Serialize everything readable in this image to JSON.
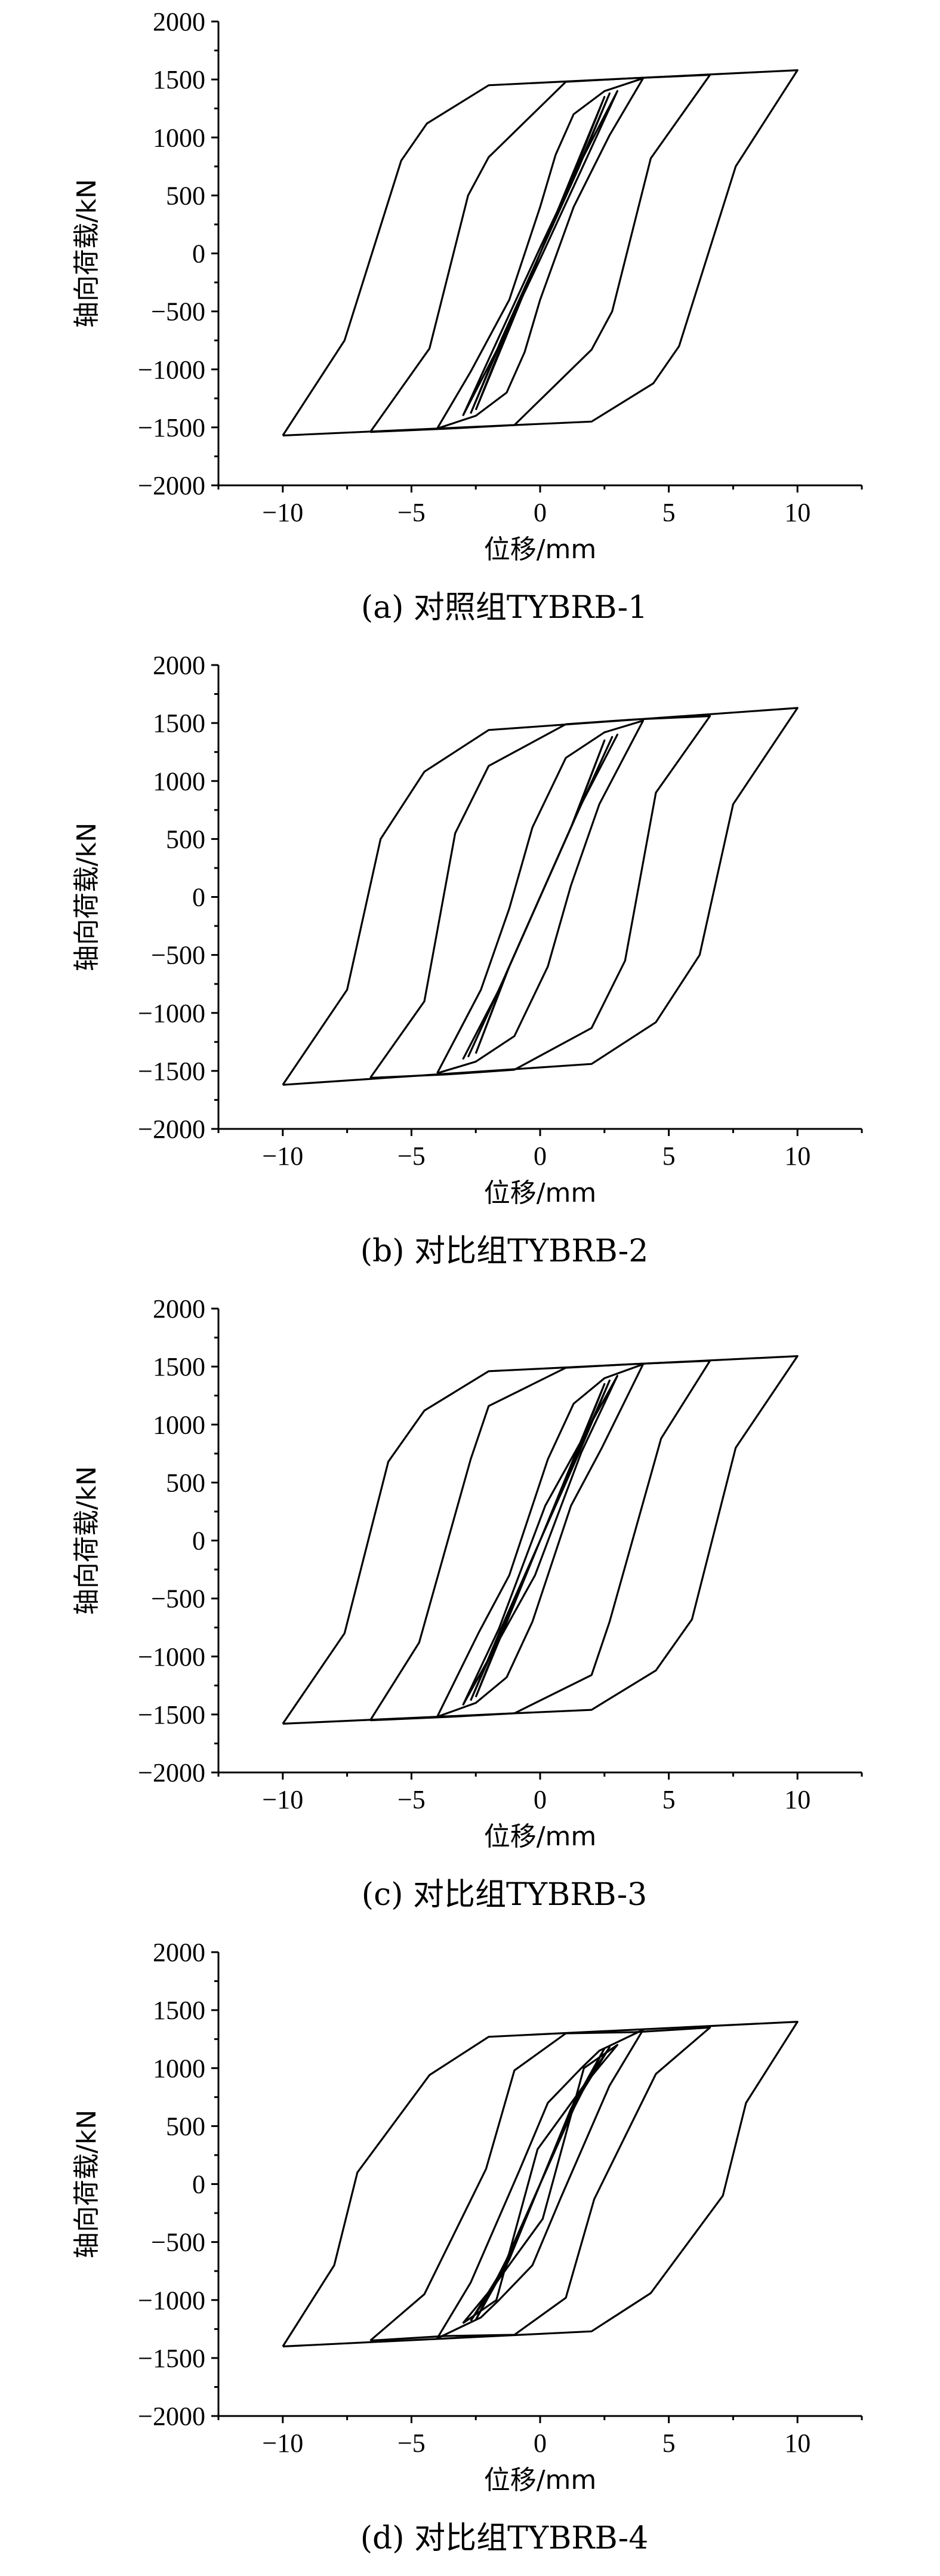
{
  "chart_data": [
    {
      "type": "line",
      "caption": "(a) 对照组TYBRB-1",
      "xlabel": "位移/mm",
      "ylabel": "轴向荷载/kN",
      "xlim": [
        -12.5,
        12.5
      ],
      "ylim": [
        -2000,
        2000
      ],
      "xticks": [
        -10,
        -5,
        0,
        5,
        10
      ],
      "yticks": [
        2000,
        1500,
        1000,
        500,
        0,
        -500,
        -1000,
        -1500,
        -2000
      ],
      "series": [
        {
          "x": [
            -2.5,
            -1.2,
            0,
            1.3,
            2.5,
            1.2,
            0,
            -1.3,
            -2.5
          ],
          "y": [
            -1350,
            -650,
            0,
            680,
            1350,
            650,
            0,
            -680,
            -1350
          ]
        },
        {
          "x": [
            -2.7,
            -1.4,
            0,
            1.5,
            2.7,
            1.4,
            0,
            -1.5,
            -2.7
          ],
          "y": [
            -1380,
            -700,
            0,
            740,
            1380,
            700,
            0,
            -740,
            -1380
          ]
        },
        {
          "x": [
            -3,
            -1.6,
            0,
            1.6,
            3,
            1.6,
            0,
            -1.6,
            -3
          ],
          "y": [
            -1400,
            -720,
            50,
            800,
            1400,
            720,
            -50,
            -800,
            -1400
          ]
        },
        {
          "x": [
            -4,
            -2.7,
            -1.2,
            0,
            0.6,
            1.3,
            2.5,
            4,
            2.7,
            1.3,
            0,
            -0.6,
            -1.3,
            -2.5,
            -4
          ],
          "y": [
            -1510,
            -1020,
            -400,
            400,
            850,
            1200,
            1400,
            1510,
            1020,
            400,
            -400,
            -850,
            -1200,
            -1400,
            -1510
          ]
        },
        {
          "x": [
            -6.6,
            -4.3,
            -2.8,
            -2,
            1,
            3.5,
            6.6,
            4.3,
            2.8,
            2,
            -1,
            -3.5,
            -6.6
          ],
          "y": [
            -1540,
            -820,
            500,
            830,
            1480,
            1510,
            1540,
            820,
            -500,
            -830,
            -1480,
            -1510,
            -1540
          ]
        },
        {
          "x": [
            -10,
            -7.6,
            -5.4,
            -4.4,
            -2,
            10,
            7.6,
            5.4,
            4.4,
            2,
            -10
          ],
          "y": [
            -1570,
            -750,
            800,
            1120,
            1450,
            1580,
            750,
            -800,
            -1120,
            -1450,
            -1570
          ]
        }
      ]
    },
    {
      "type": "line",
      "caption": "(b) 对比组TYBRB-2",
      "xlabel": "位移/mm",
      "ylabel": "轴向荷载/kN",
      "xlim": [
        -12.5,
        12.5
      ],
      "ylim": [
        -2000,
        2000
      ],
      "xticks": [
        -10,
        -5,
        0,
        5,
        10
      ],
      "yticks": [
        2000,
        1500,
        1000,
        500,
        0,
        -500,
        -1000,
        -1500,
        -2000
      ],
      "series": [
        {
          "x": [
            -2.5,
            -1.2,
            0,
            1.3,
            2.5,
            1.2,
            0,
            -1.3,
            -2.5
          ],
          "y": [
            -1350,
            -600,
            0,
            650,
            1350,
            600,
            0,
            -650,
            -1350
          ]
        },
        {
          "x": [
            -2.8,
            -1.4,
            0,
            1.5,
            2.8,
            1.4,
            0,
            -1.5,
            -2.8
          ],
          "y": [
            -1380,
            -700,
            0,
            750,
            1380,
            700,
            0,
            -750,
            -1380
          ]
        },
        {
          "x": [
            -3,
            -1.6,
            0,
            1.6,
            3,
            1.6,
            0,
            -1.6,
            -3
          ],
          "y": [
            -1400,
            -800,
            0,
            800,
            1400,
            800,
            0,
            -800,
            -1400
          ]
        },
        {
          "x": [
            -4,
            -2.3,
            -1.2,
            -0.3,
            1,
            2.5,
            4,
            2.3,
            1.2,
            0.3,
            -1,
            -2.5,
            -4
          ],
          "y": [
            -1520,
            -800,
            -100,
            600,
            1200,
            1420,
            1520,
            800,
            100,
            -600,
            -1200,
            -1420,
            -1520
          ]
        },
        {
          "x": [
            -6.6,
            -4.5,
            -3.3,
            -2,
            1,
            3.6,
            6.6,
            4.5,
            3.3,
            2,
            -1,
            -3.6,
            -6.6
          ],
          "y": [
            -1560,
            -900,
            550,
            1130,
            1490,
            1530,
            1560,
            900,
            -550,
            -1130,
            -1490,
            -1530,
            -1560
          ]
        },
        {
          "x": [
            -10,
            -7.5,
            -6.2,
            -4.5,
            -2,
            10,
            7.5,
            6.2,
            4.5,
            2,
            -10
          ],
          "y": [
            -1620,
            -800,
            500,
            1080,
            1440,
            1630,
            800,
            -500,
            -1080,
            -1440,
            -1620
          ]
        }
      ]
    },
    {
      "type": "line",
      "caption": "(c) 对比组TYBRB-3",
      "xlabel": "位移/mm",
      "ylabel": "轴向荷载/kN",
      "xlim": [
        -12.5,
        12.5
      ],
      "ylim": [
        -2000,
        2000
      ],
      "xticks": [
        -10,
        -5,
        0,
        5,
        10
      ],
      "yticks": [
        2000,
        1500,
        1000,
        500,
        0,
        -500,
        -1000,
        -1500,
        -2000
      ],
      "series": [
        {
          "x": [
            -2.5,
            -1.2,
            0,
            1.3,
            2.5,
            1.2,
            0,
            -1.3,
            -2.5
          ],
          "y": [
            -1350,
            -650,
            0,
            680,
            1350,
            650,
            0,
            -680,
            -1350
          ]
        },
        {
          "x": [
            -2.7,
            -1.4,
            0,
            1.5,
            2.7,
            1.4,
            0,
            -1.5,
            -2.7
          ],
          "y": [
            -1380,
            -720,
            0,
            750,
            1380,
            720,
            0,
            -750,
            -1380
          ]
        },
        {
          "x": [
            -3,
            -1.6,
            0.2,
            1.6,
            3,
            1.6,
            -0.2,
            -1.6,
            -3
          ],
          "y": [
            -1420,
            -760,
            300,
            860,
            1420,
            760,
            -300,
            -860,
            -1420
          ]
        },
        {
          "x": [
            -4,
            -2.4,
            -1.2,
            0.3,
            1.3,
            2.5,
            4,
            2.4,
            1.2,
            -0.3,
            -1.3,
            -2.5,
            -4
          ],
          "y": [
            -1520,
            -800,
            -300,
            700,
            1180,
            1400,
            1520,
            800,
            300,
            -700,
            -1180,
            -1400,
            -1520
          ]
        },
        {
          "x": [
            -6.6,
            -4.7,
            -2.7,
            -2,
            1,
            3.5,
            6.6,
            4.7,
            2.7,
            2,
            -1,
            -3.5,
            -6.6
          ],
          "y": [
            -1550,
            -880,
            700,
            1160,
            1490,
            1520,
            1550,
            880,
            -700,
            -1160,
            -1490,
            -1520,
            -1550
          ]
        },
        {
          "x": [
            -10,
            -7.6,
            -5.9,
            -4.5,
            -2,
            10,
            7.6,
            5.9,
            4.5,
            2,
            -10
          ],
          "y": [
            -1580,
            -800,
            680,
            1120,
            1460,
            1590,
            800,
            -680,
            -1120,
            -1460,
            -1580
          ]
        }
      ]
    },
    {
      "type": "line",
      "caption": "(d) 对比组TYBRB-4",
      "xlabel": "位移/mm",
      "ylabel": "轴向荷载/kN",
      "xlim": [
        -12.5,
        12.5
      ],
      "ylim": [
        -2000,
        2000
      ],
      "xticks": [
        -10,
        -5,
        0,
        5,
        10
      ],
      "yticks": [
        2000,
        1500,
        1000,
        500,
        0,
        -500,
        -1000,
        -1500,
        -2000
      ],
      "series": [
        {
          "x": [
            -2.5,
            -1.2,
            0,
            1.3,
            2.5,
            1.2,
            0,
            -1.3,
            -2.5
          ],
          "y": [
            -1170,
            -650,
            0,
            650,
            1170,
            650,
            0,
            -650,
            -1170
          ]
        },
        {
          "x": [
            -2.7,
            -1.4,
            0,
            1.5,
            2.7,
            1.4,
            0,
            -1.5,
            -2.7
          ],
          "y": [
            -1180,
            -750,
            0,
            750,
            1180,
            750,
            0,
            -750,
            -1180
          ]
        },
        {
          "x": [
            -3,
            -1.7,
            -0.1,
            1.7,
            3,
            1.7,
            0.1,
            -1.7,
            -3
          ],
          "y": [
            -1200,
            -1000,
            300,
            850,
            1200,
            1000,
            -300,
            -850,
            -1200
          ]
        },
        {
          "x": [
            -4,
            -2.7,
            -0.8,
            0.3,
            1.6,
            2.3,
            4,
            2.7,
            0.8,
            -0.3,
            -1.6,
            -2.3,
            -4
          ],
          "y": [
            -1330,
            -850,
            120,
            700,
            1000,
            1150,
            1330,
            850,
            -120,
            -700,
            -1000,
            -1150,
            -1330
          ]
        },
        {
          "x": [
            -6.6,
            -4.5,
            -2.1,
            -1,
            1,
            3.7,
            6.6,
            4.5,
            2.1,
            1,
            -1,
            -3.7,
            -6.6
          ],
          "y": [
            -1350,
            -950,
            130,
            980,
            1300,
            1310,
            1350,
            950,
            -130,
            -980,
            -1300,
            -1310,
            -1350
          ]
        },
        {
          "x": [
            -10,
            -8,
            -7.1,
            -4.3,
            -2,
            10,
            8,
            7.1,
            4.3,
            2,
            -10
          ],
          "y": [
            -1400,
            -700,
            100,
            940,
            1270,
            1400,
            700,
            -100,
            -940,
            -1270,
            -1400
          ]
        }
      ]
    }
  ]
}
